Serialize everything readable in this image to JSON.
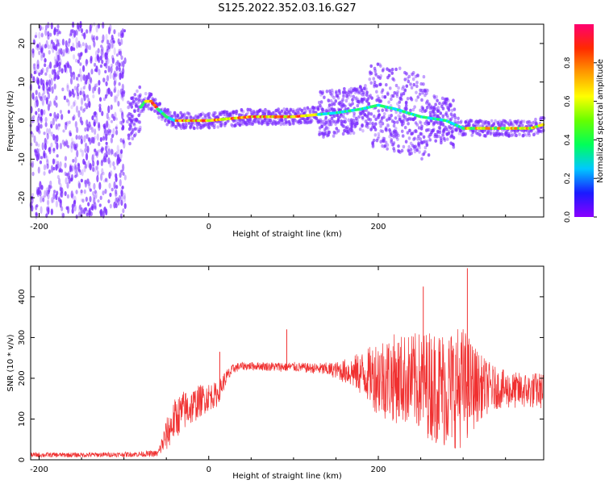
{
  "title": "S125.2022.352.03.16.G27",
  "colors": {
    "snr_line": "#f03030",
    "spectrogram_scatter": "#7a2cff",
    "axis": "#000000",
    "colorbar_stops": [
      "#8a00ff",
      "#1a1aff",
      "#00c8ff",
      "#00ff5a",
      "#66ff00",
      "#ffff00",
      "#ff9a00",
      "#ff2a00",
      "#ff0070"
    ]
  },
  "chart_data": [
    {
      "type": "heatmap",
      "xlabel": "Height of straight line (km)",
      "ylabel": "Frequency (Hz)",
      "xlim": [
        -210,
        395
      ],
      "ylim": [
        -25,
        25
      ],
      "xticks": [
        -200,
        0,
        200
      ],
      "yticks": [
        20,
        10,
        0,
        -10,
        -20
      ],
      "grid": false,
      "colorbar": {
        "label": "Normalized spectral amplitude",
        "range": [
          0,
          1
        ],
        "ticks": [
          "0.0",
          "0.2",
          "0.4",
          "0.6",
          "0.8"
        ]
      },
      "ridge": {
        "x": [
          -95,
          -85,
          -75,
          -68,
          -60,
          -50,
          -40,
          -30,
          0,
          50,
          100,
          150,
          180,
          200,
          220,
          250,
          280,
          290,
          300,
          320,
          350,
          380,
          395
        ],
        "y": [
          -1,
          2,
          5,
          5,
          3,
          1,
          0,
          0,
          0,
          1,
          1,
          2,
          3,
          4,
          3,
          1,
          0,
          -1,
          -2,
          -2,
          -2,
          -2,
          -1
        ]
      },
      "noise_region_x": [
        -210,
        -98
      ]
    },
    {
      "type": "line",
      "xlabel": "Height of straight line (km)",
      "ylabel": "SNR (10 * v/v)",
      "xlim": [
        -210,
        395
      ],
      "ylim": [
        0,
        475
      ],
      "xticks": [
        -200,
        0,
        200
      ],
      "yticks": [
        0,
        100,
        200,
        300,
        400
      ],
      "grid": false,
      "series_points": {
        "x": [
          -210,
          -150,
          -100,
          -60,
          -50,
          -40,
          -30,
          -20,
          -10,
          0,
          10,
          20,
          30,
          40,
          50,
          60,
          80,
          100,
          120,
          150,
          170,
          190,
          200,
          220,
          240,
          260,
          280,
          300,
          320,
          340,
          360,
          380,
          395
        ],
        "center": [
          12,
          12,
          13,
          15,
          60,
          100,
          120,
          130,
          145,
          155,
          160,
          200,
          225,
          230,
          230,
          230,
          228,
          228,
          225,
          220,
          215,
          208,
          205,
          200,
          195,
          185,
          175,
          180,
          180,
          175,
          170,
          170,
          170
        ],
        "amp": [
          6,
          6,
          6,
          8,
          40,
          50,
          50,
          45,
          40,
          35,
          30,
          20,
          12,
          10,
          10,
          10,
          12,
          12,
          12,
          20,
          40,
          70,
          100,
          110,
          115,
          135,
          150,
          150,
          80,
          50,
          45,
          45,
          45
        ]
      },
      "spikes": [
        {
          "x": 13,
          "y": 265
        },
        {
          "x": 92,
          "y": 320
        },
        {
          "x": 253,
          "y": 425
        },
        {
          "x": 305,
          "y": 470
        }
      ]
    }
  ]
}
